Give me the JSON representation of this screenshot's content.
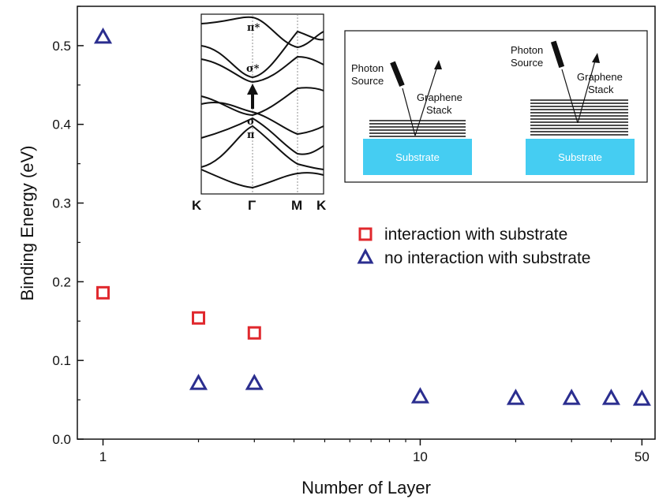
{
  "chart_data": {
    "type": "scatter",
    "xlabel": "Number of Layer",
    "ylabel": "Binding Energy (eV)",
    "xscale": "log",
    "xlim": [
      0.83,
      55
    ],
    "ylim": [
      0,
      0.55
    ],
    "xticks": [
      1,
      10,
      50
    ],
    "yticks": [
      0.0,
      0.1,
      0.2,
      0.3,
      0.4,
      0.5
    ],
    "ytick_labels": [
      "0.0",
      "0.1",
      "0.2",
      "0.3",
      "0.4",
      "0.5"
    ],
    "legend_position": "right",
    "series": [
      {
        "name": "interaction with substrate",
        "marker": "square",
        "color": "#e0282d",
        "x": [
          1,
          2,
          3
        ],
        "y": [
          0.186,
          0.154,
          0.135
        ]
      },
      {
        "name": "no interaction with substrate",
        "marker": "triangle",
        "color": "#2b2e8f",
        "x": [
          1,
          2,
          3,
          10,
          20,
          30,
          40,
          50
        ],
        "y": [
          0.511,
          0.071,
          0.071,
          0.054,
          0.052,
          0.052,
          0.052,
          0.051
        ]
      }
    ]
  },
  "inset_band": {
    "band_labels": [
      "π*",
      "σ*",
      "σ",
      "π"
    ],
    "k_labels": [
      "K",
      "Γ",
      "M",
      "K"
    ]
  },
  "inset_setup": {
    "photon_source": [
      "Photon",
      "Source"
    ],
    "graphene_stack": [
      "Graphene",
      "Stack"
    ],
    "substrate": "Substrate",
    "substrate_color": "#45cdf2"
  }
}
